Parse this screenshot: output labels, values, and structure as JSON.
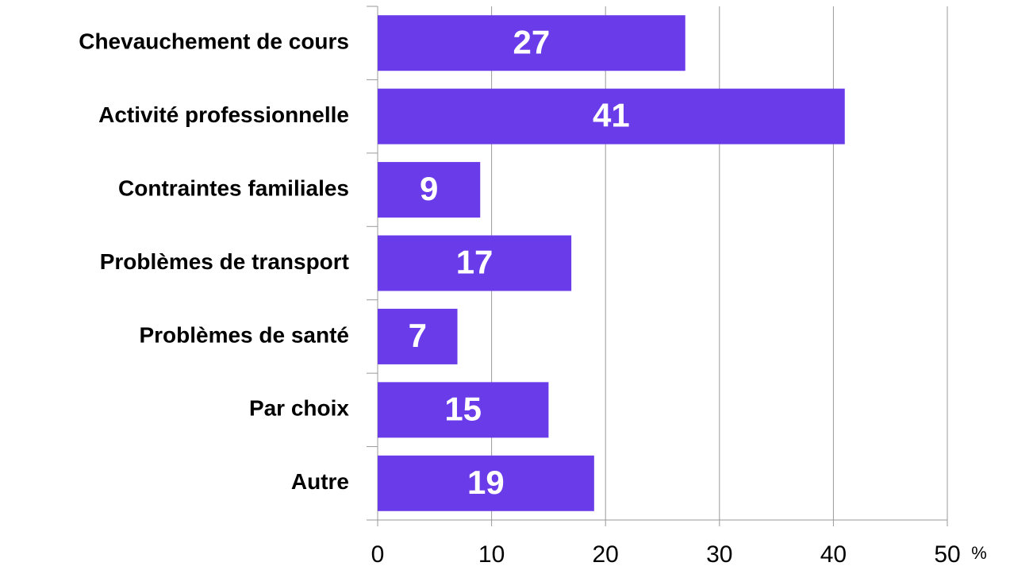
{
  "chart_data": {
    "type": "bar",
    "orientation": "horizontal",
    "categories": [
      "Chevauchement de cours",
      "Activité professionnelle",
      "Contraintes familiales",
      "Problèmes de transport",
      "Problèmes de santé",
      "Par choix",
      "Autre"
    ],
    "values": [
      27,
      41,
      9,
      17,
      7,
      15,
      19
    ],
    "color": "#6a3be8",
    "xlim": [
      0,
      50
    ],
    "xticks": [
      0,
      10,
      20,
      30,
      40,
      50
    ],
    "x_unit": "%",
    "grid": true
  }
}
